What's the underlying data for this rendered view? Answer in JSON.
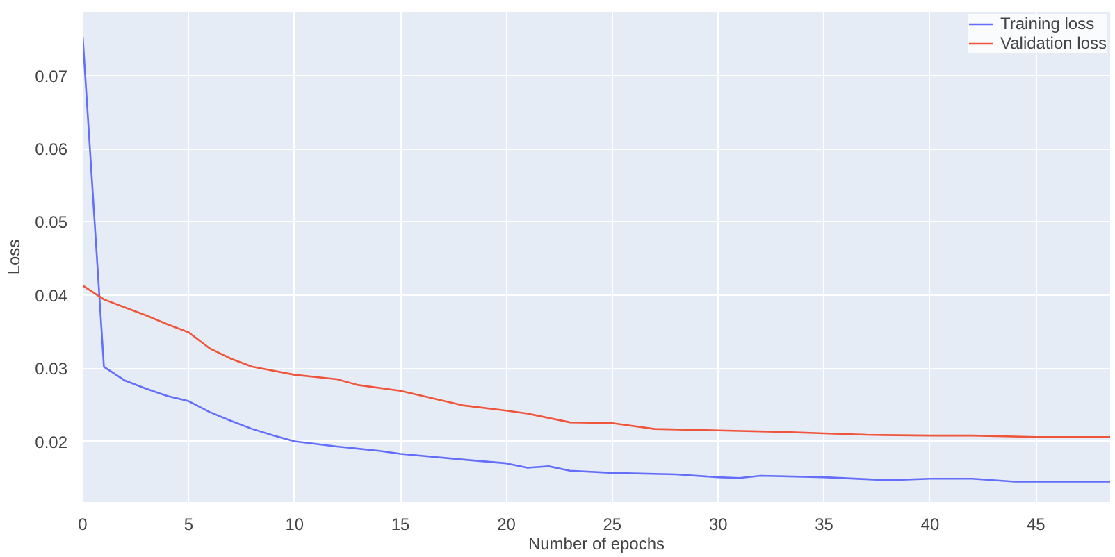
{
  "chart_data": {
    "type": "line",
    "xlabel": "Number of epochs",
    "ylabel": "Loss",
    "xlim": [
      0,
      48.5
    ],
    "ylim": [
      0.0117,
      0.0787
    ],
    "xticks": [
      0,
      5,
      10,
      15,
      20,
      25,
      30,
      35,
      40,
      45
    ],
    "yticks": [
      0.02,
      0.03,
      0.04,
      0.05,
      0.06,
      0.07
    ],
    "grid": true,
    "legend": "top right",
    "series": [
      {
        "name": "Training loss",
        "color": "#636efa",
        "x": [
          0,
          1,
          2,
          3,
          4,
          5,
          6,
          7,
          8,
          9,
          10,
          12,
          14,
          15,
          18,
          20,
          21,
          22,
          23,
          25,
          28,
          30,
          31,
          32,
          35,
          38,
          40,
          42,
          44,
          48.5
        ],
        "values": [
          0.0753,
          0.0302,
          0.0283,
          0.0272,
          0.0262,
          0.0255,
          0.024,
          0.0228,
          0.0217,
          0.0208,
          0.02,
          0.0193,
          0.0187,
          0.0183,
          0.0175,
          0.017,
          0.0164,
          0.0166,
          0.016,
          0.0157,
          0.0155,
          0.0151,
          0.015,
          0.0153,
          0.0151,
          0.0147,
          0.0149,
          0.0149,
          0.0145,
          0.0145
        ]
      },
      {
        "name": "Validation loss",
        "color": "#ef553b",
        "x": [
          0,
          1,
          2,
          3,
          4,
          5,
          6,
          7,
          8,
          10,
          12,
          13,
          15,
          18,
          20,
          21,
          23,
          25,
          27,
          30,
          33,
          35,
          37,
          40,
          42,
          45,
          48.5
        ],
        "values": [
          0.0413,
          0.0394,
          0.0383,
          0.0372,
          0.036,
          0.0349,
          0.0327,
          0.0313,
          0.0302,
          0.0291,
          0.0285,
          0.0277,
          0.0269,
          0.0249,
          0.0242,
          0.0238,
          0.0226,
          0.0225,
          0.0217,
          0.0215,
          0.0213,
          0.0211,
          0.0209,
          0.0208,
          0.0208,
          0.0206,
          0.0206
        ]
      }
    ]
  }
}
